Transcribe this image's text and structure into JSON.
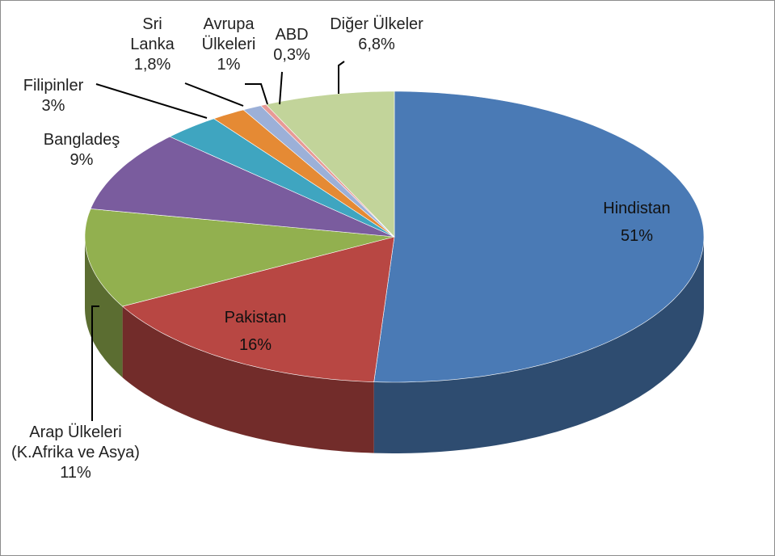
{
  "chart_data": {
    "type": "pie3d",
    "categories": [
      "Hindistan",
      "Pakistan",
      "Arap Ülkeleri (K.Afrika ve Asya)",
      "Bangladeş",
      "Filipinler",
      "Sri Lanka",
      "Avrupa Ülkeleri",
      "ABD",
      "Diğer Ülkeler"
    ],
    "values": [
      51,
      16,
      11,
      9,
      3,
      1.8,
      1,
      0.3,
      6.8
    ],
    "value_labels": [
      "51%",
      "16%",
      "11%",
      "9%",
      "3%",
      "1,8%",
      "1%",
      "0,3%",
      "6,8%"
    ],
    "colors": [
      "#4a7ab5",
      "#b84743",
      "#92b04f",
      "#7a5c9e",
      "#3fa5c0",
      "#e58a34",
      "#9cb0d8",
      "#e89a96",
      "#c2d49a"
    ]
  }
}
